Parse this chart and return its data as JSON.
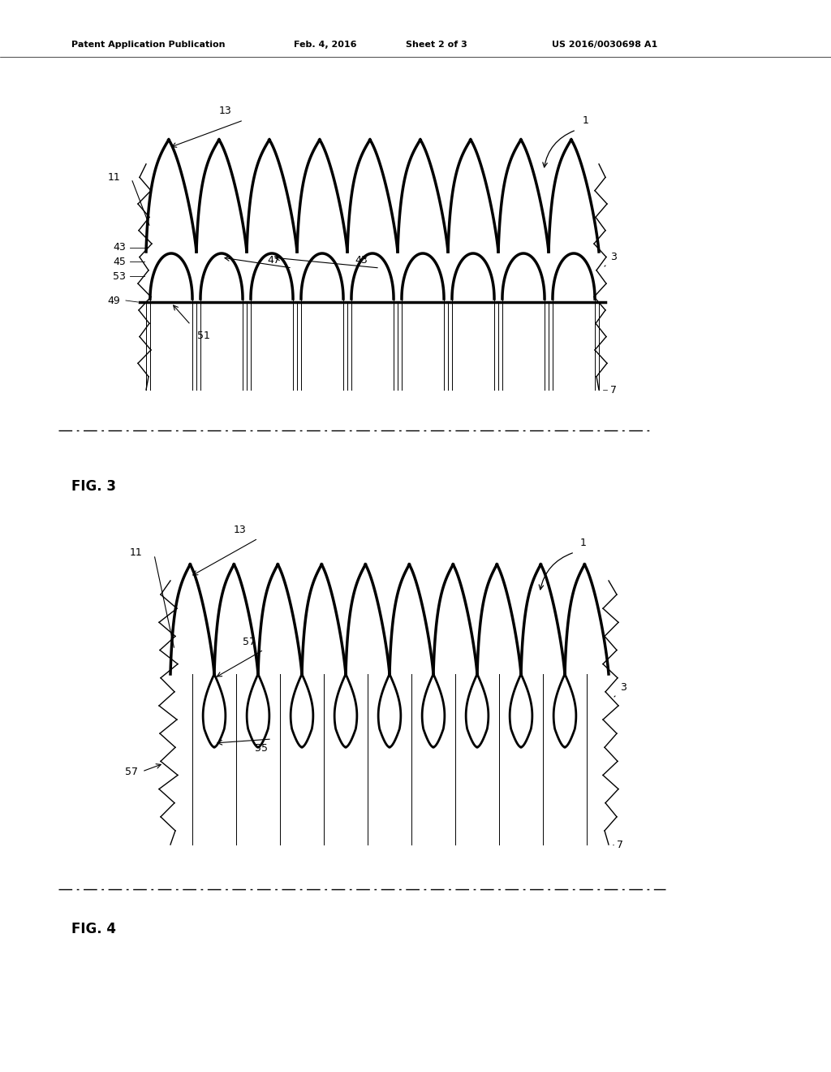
{
  "bg_color": "#ffffff",
  "line_color": "#000000",
  "header_text": "Patent Application Publication",
  "header_date": "Feb. 4, 2016",
  "header_sheet": "Sheet 2 of 3",
  "header_patent": "US 2016/0030698 A1",
  "fig3_label": "FIG. 3",
  "fig4_label": "FIG. 4"
}
